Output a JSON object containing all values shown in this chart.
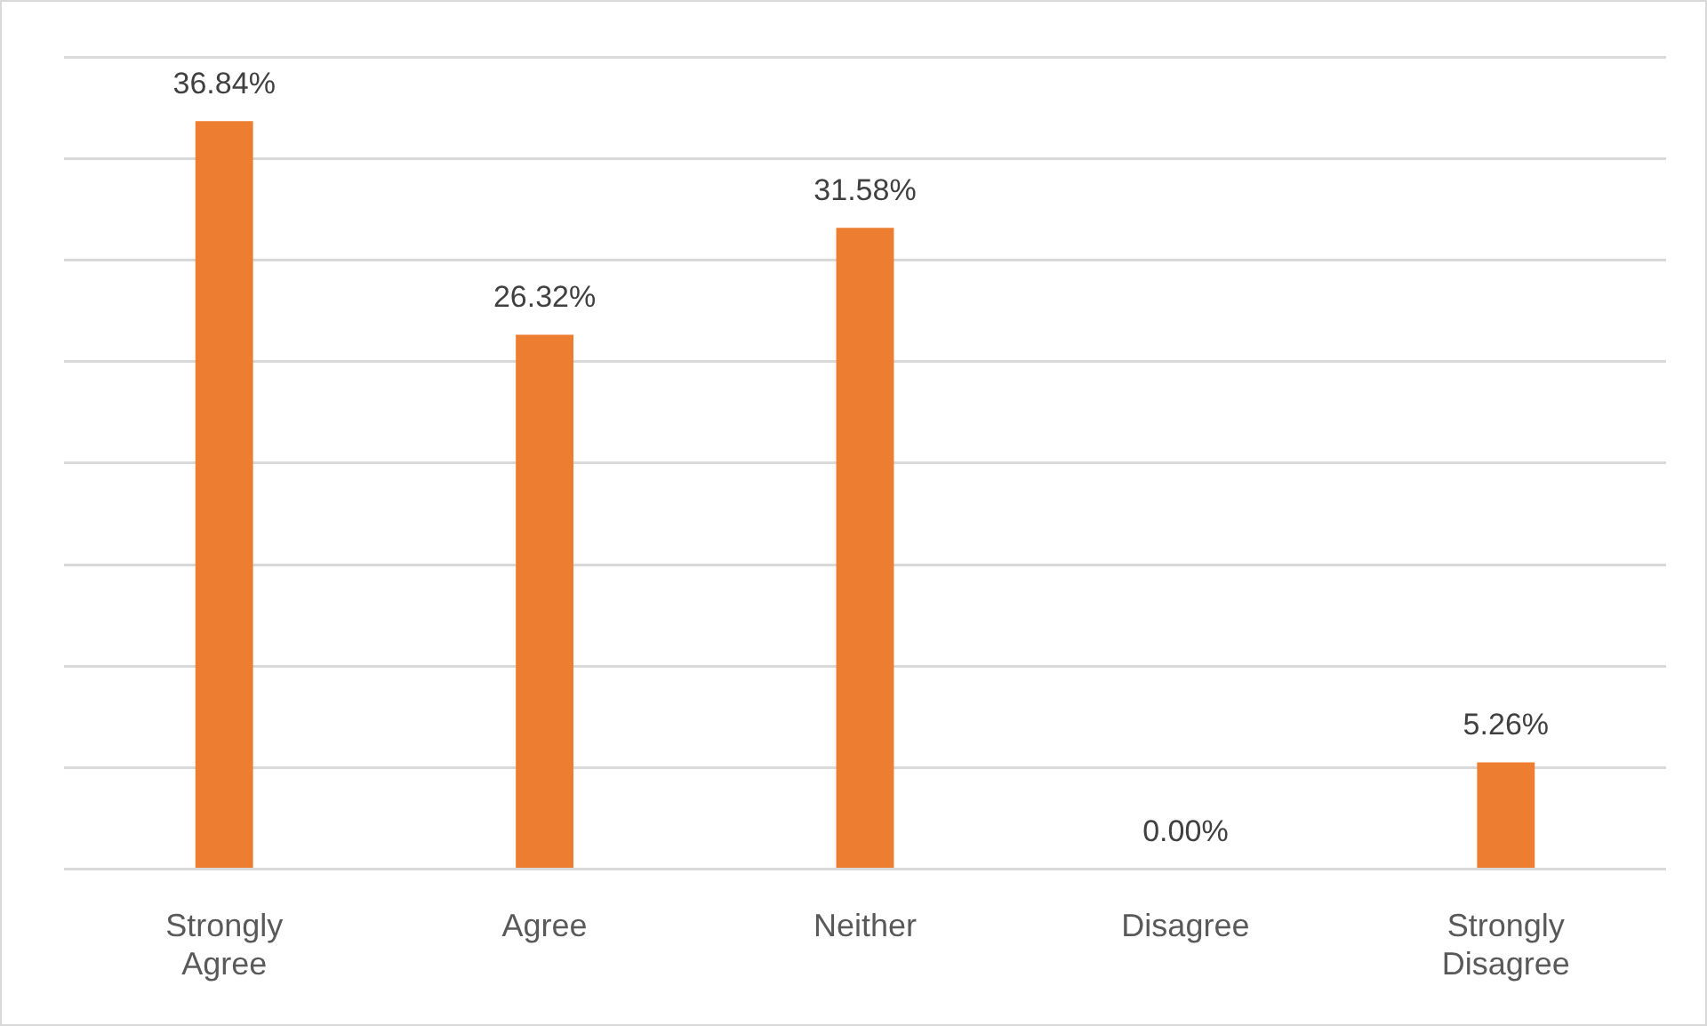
{
  "chart_data": {
    "type": "bar",
    "categories": [
      "Strongly Agree",
      "Agree",
      "Neither",
      "Disagree",
      "Strongly Disagree"
    ],
    "values": [
      36.84,
      26.32,
      31.58,
      0,
      5.26
    ],
    "value_labels": [
      "36.84%",
      "26.32%",
      "31.58%",
      "0.00%",
      "5.26%"
    ],
    "color": "#ed7d31",
    "ylim": [
      0,
      40
    ],
    "yticks": [
      {
        "value": 0,
        "label": null
      },
      {
        "value": 5,
        "label": null
      },
      {
        "value": 10,
        "label": null
      },
      {
        "value": 15,
        "label": null
      },
      {
        "value": 20,
        "label": null
      },
      {
        "value": 25,
        "label": null
      },
      {
        "value": 30,
        "label": null
      },
      {
        "value": 35,
        "label": null
      },
      {
        "value": 40,
        "label": null
      }
    ],
    "grid": "y",
    "tick_labels": "x",
    "legend": false
  }
}
